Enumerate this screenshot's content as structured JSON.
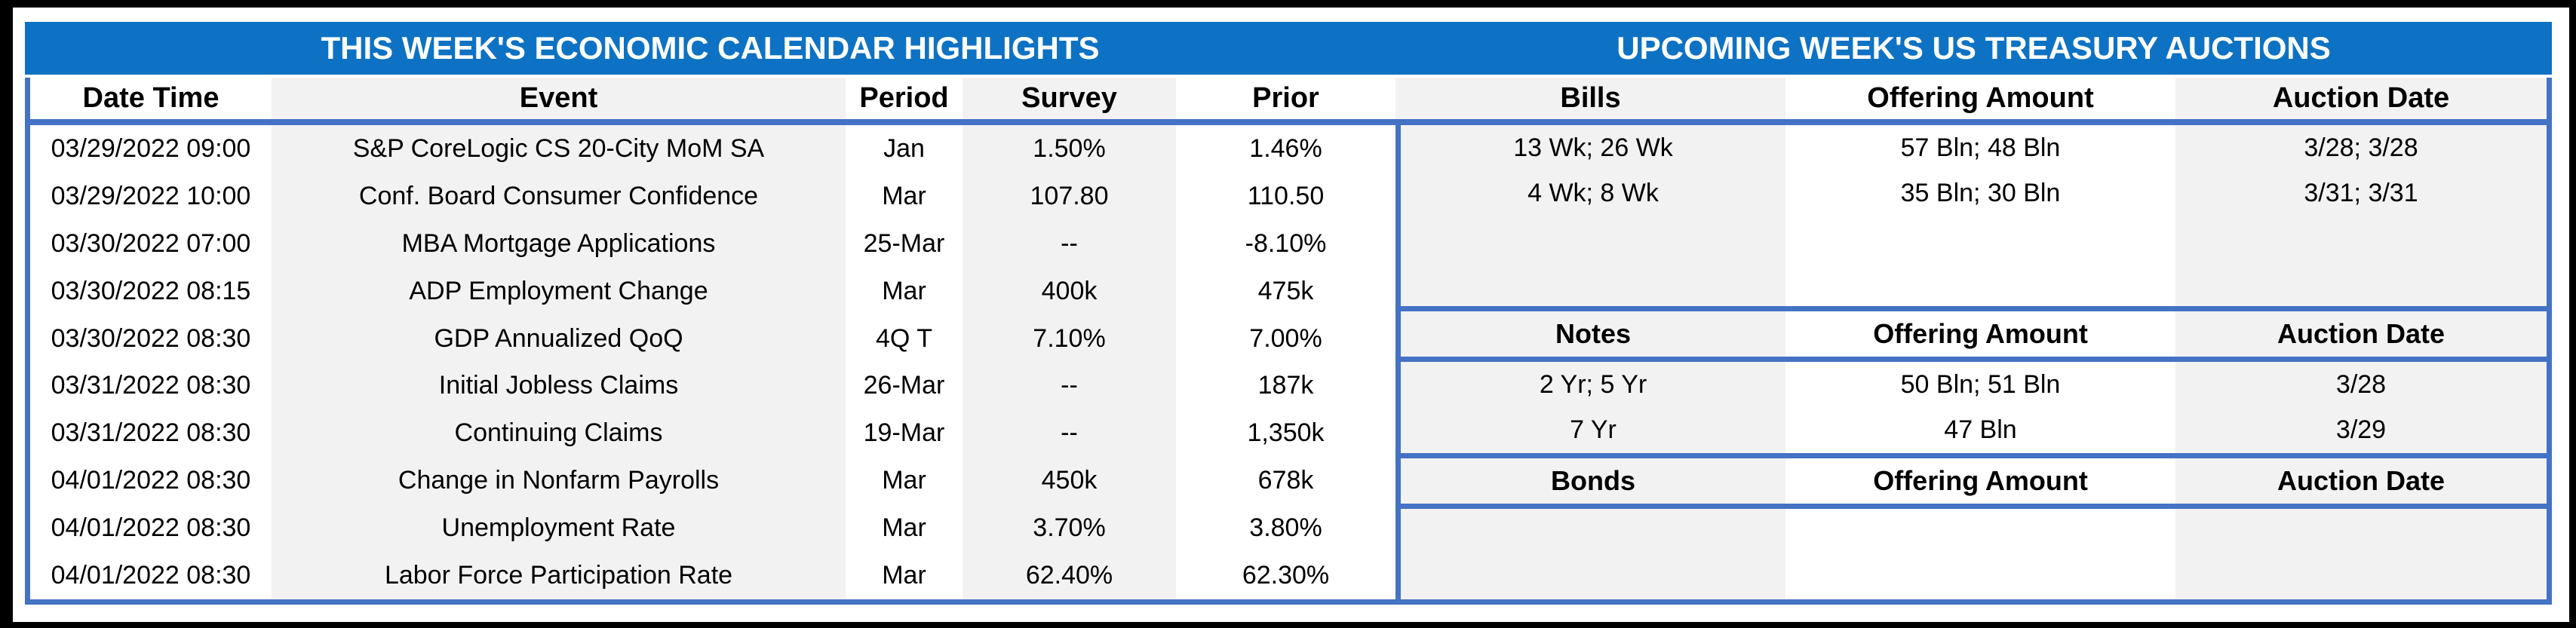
{
  "economic_calendar": {
    "title": "THIS WEEK'S ECONOMIC CALENDAR HIGHLIGHTS",
    "columns": [
      "Date Time",
      "Event",
      "Period",
      "Survey",
      "Prior"
    ],
    "rows": [
      [
        "03/29/2022 09:00",
        "S&P CoreLogic CS 20-City MoM SA",
        "Jan",
        "1.50%",
        "1.46%"
      ],
      [
        "03/29/2022 10:00",
        "Conf. Board Consumer Confidence",
        "Mar",
        "107.80",
        "110.50"
      ],
      [
        "03/30/2022 07:00",
        "MBA Mortgage Applications",
        "25-Mar",
        "--",
        "-8.10%"
      ],
      [
        "03/30/2022 08:15",
        "ADP Employment Change",
        "Mar",
        "400k",
        "475k"
      ],
      [
        "03/30/2022 08:30",
        "GDP Annualized QoQ",
        "4Q T",
        "7.10%",
        "7.00%"
      ],
      [
        "03/31/2022 08:30",
        "Initial Jobless Claims",
        "26-Mar",
        "--",
        "187k"
      ],
      [
        "03/31/2022 08:30",
        "Continuing Claims",
        "19-Mar",
        "--",
        "1,350k"
      ],
      [
        "04/01/2022 08:30",
        "Change in Nonfarm Payrolls",
        "Mar",
        "450k",
        "678k"
      ],
      [
        "04/01/2022 08:30",
        "Unemployment Rate",
        "Mar",
        "3.70%",
        "3.80%"
      ],
      [
        "04/01/2022 08:30",
        "Labor Force Participation Rate",
        "Mar",
        "62.40%",
        "62.30%"
      ]
    ]
  },
  "treasury_auctions": {
    "title": "UPCOMING WEEK'S US TREASURY AUCTIONS",
    "sections": [
      {
        "name": "Bills",
        "columns": [
          "Bills",
          "Offering Amount",
          "Auction Date"
        ],
        "rows": [
          [
            "13 Wk; 26 Wk",
            "57 Bln; 48 Bln",
            "3/28; 3/28"
          ],
          [
            "4 Wk; 8 Wk",
            "35 Bln; 30 Bln",
            "3/31; 3/31"
          ]
        ]
      },
      {
        "name": "Notes",
        "columns": [
          "Notes",
          "Offering Amount",
          "Auction Date"
        ],
        "rows": [
          [
            "2 Yr; 5 Yr",
            "50 Bln; 51 Bln",
            "3/28"
          ],
          [
            "7 Yr",
            "47 Bln",
            "3/29"
          ]
        ]
      },
      {
        "name": "Bonds",
        "columns": [
          "Bonds",
          "Offering Amount",
          "Auction Date"
        ],
        "rows": []
      }
    ]
  },
  "colors": {
    "title_bar_blue": "#0E72C4",
    "grid_border_blue": "#4472C4",
    "row_stripe_gray": "#F2F2F2",
    "frame_black": "#000000",
    "title_text": "#FFFFFF"
  }
}
